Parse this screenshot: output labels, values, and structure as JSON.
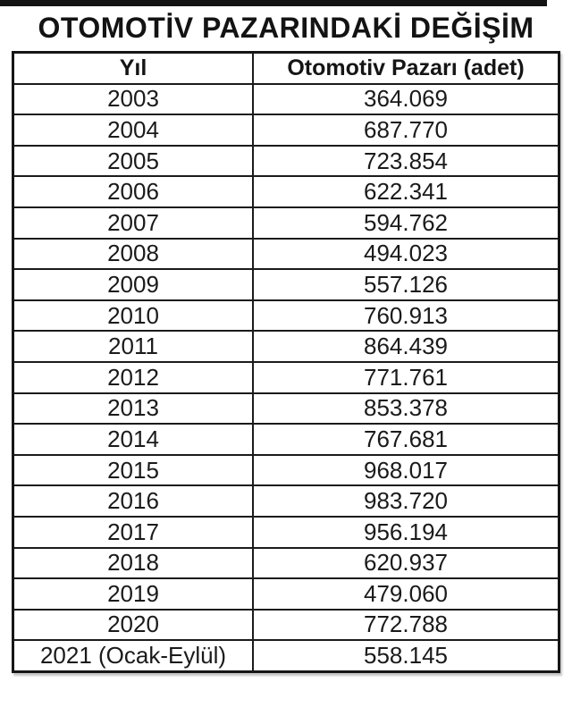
{
  "title": "OTOMOTİV PAZARINDAKİ DEĞİŞİM",
  "colors": {
    "background": "#ffffff",
    "text": "#1a1a1a",
    "border": "#1b1b1b",
    "top_bar": "#131313"
  },
  "chart_data": {
    "type": "table",
    "title": "OTOMOTİV PAZARINDAKİ DEĞİŞİM",
    "columns": [
      "Yıl",
      "Otomotiv Pazarı (adet)"
    ],
    "rows": [
      [
        "2003",
        "364.069"
      ],
      [
        "2004",
        "687.770"
      ],
      [
        "2005",
        "723.854"
      ],
      [
        "2006",
        "622.341"
      ],
      [
        "2007",
        "594.762"
      ],
      [
        "2008",
        "494.023"
      ],
      [
        "2009",
        "557.126"
      ],
      [
        "2010",
        "760.913"
      ],
      [
        "2011",
        "864.439"
      ],
      [
        "2012",
        "771.761"
      ],
      [
        "2013",
        "853.378"
      ],
      [
        "2014",
        "767.681"
      ],
      [
        "2015",
        "968.017"
      ],
      [
        "2016",
        "983.720"
      ],
      [
        "2017",
        "956.194"
      ],
      [
        "2018",
        "620.937"
      ],
      [
        "2019",
        "479.060"
      ],
      [
        "2020",
        "772.788"
      ],
      [
        "2021 (Ocak-Eylül)",
        "558.145"
      ]
    ]
  }
}
